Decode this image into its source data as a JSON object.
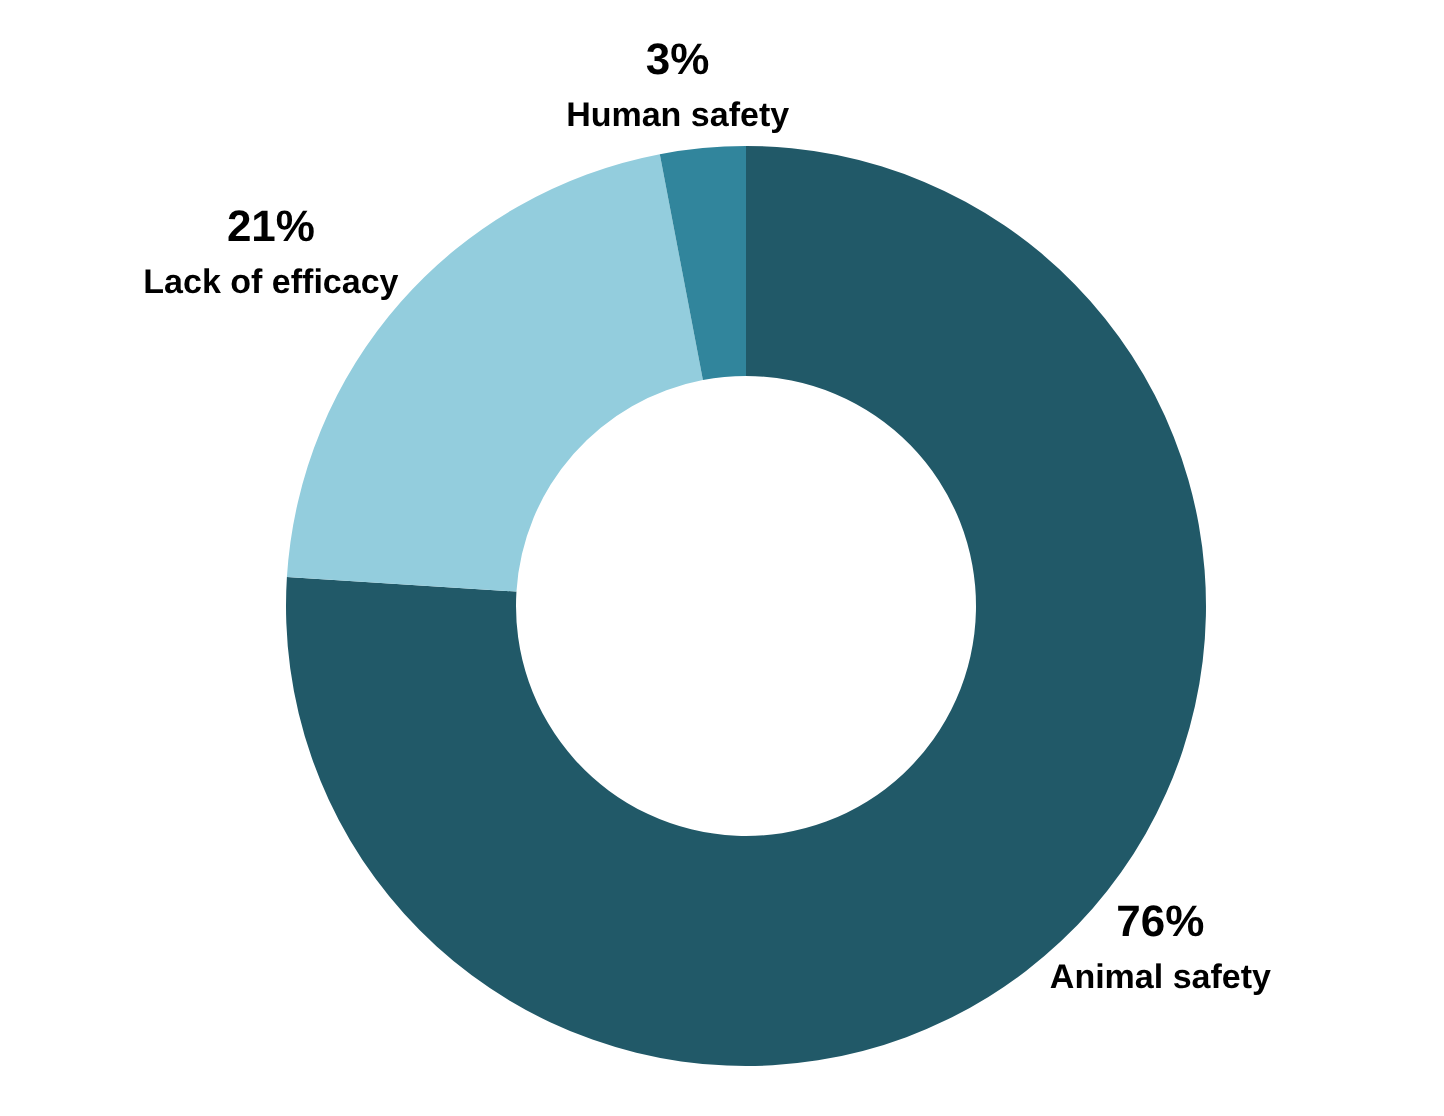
{
  "chart_data": {
    "type": "donut",
    "categories": [
      "Animal safety",
      "Lack of efficacy",
      "Human safety"
    ],
    "values": [
      76,
      21,
      3
    ],
    "colors": [
      "#215968",
      "#93cddd",
      "#31859c"
    ],
    "value_labels": [
      "76%",
      "21%",
      "3%"
    ]
  }
}
